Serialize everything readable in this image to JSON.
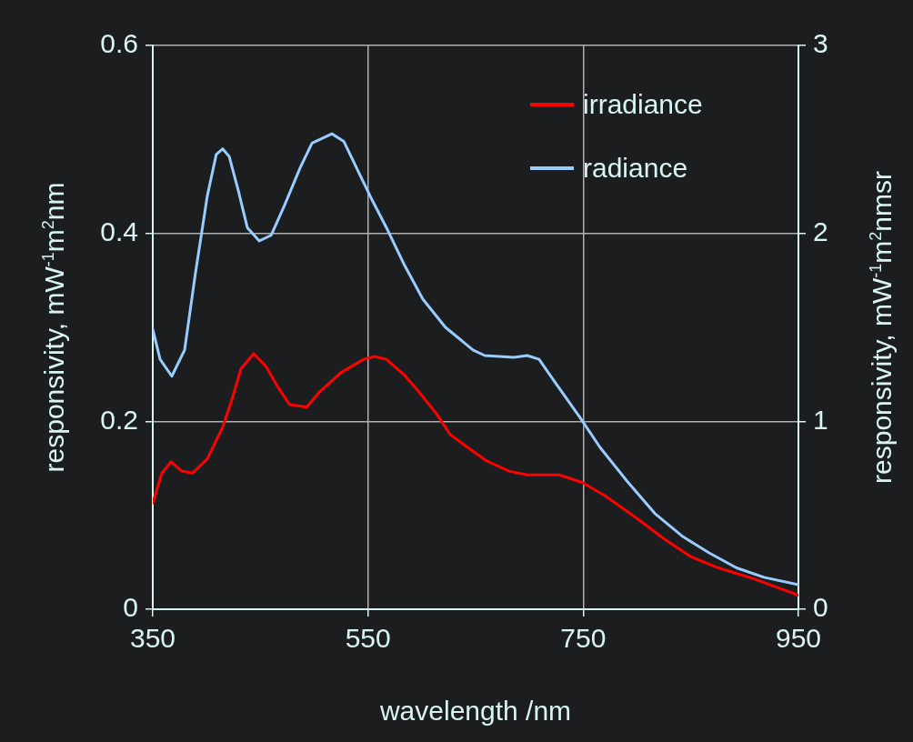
{
  "chart_data": {
    "type": "line",
    "xlabel": "wavelength /nm",
    "ylabel": "responsivity,  mW$^{-1}$m$^{2}$nm",
    "y2label": "responsivity,  mW$^{-1}$m$^{2}$nmsr",
    "xlim": [
      350,
      950
    ],
    "xticks": [
      350,
      550,
      750,
      950
    ],
    "ylim": [
      0,
      0.6
    ],
    "yticks": [
      0,
      0.2,
      0.4,
      0.6
    ],
    "y2lim": [
      0,
      3
    ],
    "y2ticks": [
      0,
      1,
      2,
      3
    ],
    "grid": true,
    "legend": "top right",
    "marker": "none",
    "line_style": "solid",
    "series": [
      {
        "name": "irradiance",
        "color": "#ff0000",
        "axis": "y",
        "x": [
          350,
          358.5,
          367,
          377,
          387,
          400.7,
          415,
          423.5,
          432,
          443.8,
          454.8,
          466,
          477,
          493,
          505.5,
          525,
          546,
          556,
          567,
          584,
          596.8,
          613.7,
          626.3,
          643,
          660,
          681,
          698,
          727.7,
          749,
          770,
          799.6,
          825,
          850,
          875.6,
          909.5,
          950
        ],
        "values": [
          0.113,
          0.145,
          0.157,
          0.147,
          0.145,
          0.16,
          0.194,
          0.223,
          0.256,
          0.272,
          0.259,
          0.237,
          0.218,
          0.215,
          0.232,
          0.252,
          0.266,
          0.269,
          0.266,
          0.249,
          0.232,
          0.208,
          0.186,
          0.172,
          0.158,
          0.147,
          0.143,
          0.143,
          0.135,
          0.121,
          0.097,
          0.075,
          0.056,
          0.044,
          0.032,
          0.015
        ]
      },
      {
        "name": "radiance",
        "color": "#99ccff",
        "axis": "y2",
        "x": [
          350,
          356.8,
          367.7,
          379.6,
          389.7,
          400.7,
          409,
          415,
          421,
          429.4,
          437.9,
          449,
          460,
          472.5,
          487,
          498,
          516.5,
          527.5,
          541.8,
          554.5,
          567.2,
          584,
          601,
          622,
          647.5,
          658.5,
          685.5,
          698,
          709,
          723.5,
          747,
          765.8,
          791,
          816.5,
          841.8,
          867,
          892.5,
          918,
          950
        ],
        "values": [
          1.49,
          1.33,
          1.24,
          1.38,
          1.79,
          2.2,
          2.42,
          2.45,
          2.41,
          2.23,
          2.03,
          1.96,
          1.99,
          2.15,
          2.35,
          2.48,
          2.53,
          2.49,
          2.32,
          2.17,
          2.03,
          1.83,
          1.65,
          1.5,
          1.38,
          1.35,
          1.34,
          1.35,
          1.33,
          1.21,
          1.02,
          0.86,
          0.68,
          0.51,
          0.39,
          0.3,
          0.22,
          0.17,
          0.13
        ]
      }
    ]
  }
}
